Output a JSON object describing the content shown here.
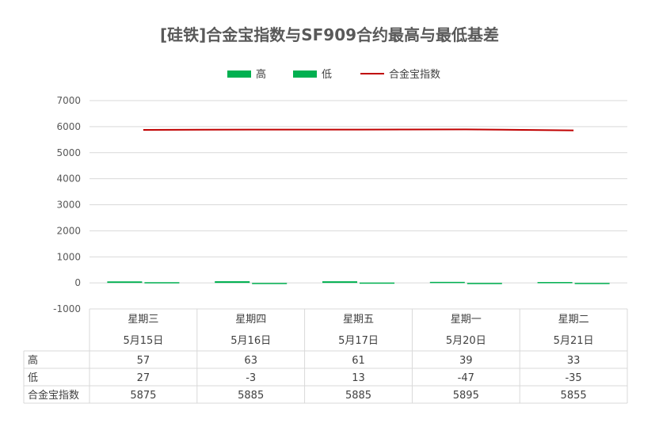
{
  "chart_data": {
    "type": "bar",
    "title": "[硅铁]合金宝指数与SF909合约最高与最低基差",
    "categories": [
      {
        "weekday": "星期三",
        "date": "5月15日"
      },
      {
        "weekday": "星期四",
        "date": "5月16日"
      },
      {
        "weekday": "星期五",
        "date": "5月17日"
      },
      {
        "weekday": "星期一",
        "date": "5月20日"
      },
      {
        "weekday": "星期二",
        "date": "5月21日"
      }
    ],
    "series": [
      {
        "name": "高",
        "kind": "bar",
        "color": "#00b050",
        "values": [
          57,
          63,
          61,
          39,
          33
        ]
      },
      {
        "name": "低",
        "kind": "bar",
        "color": "#00b050",
        "values": [
          27,
          -3,
          13,
          -47,
          -35
        ]
      },
      {
        "name": "合金宝指数",
        "kind": "line",
        "color": "#c00000",
        "values": [
          5875,
          5885,
          5885,
          5895,
          5855
        ]
      }
    ],
    "ylim": [
      -1000,
      7000
    ],
    "yticks": [
      7000,
      6000,
      5000,
      4000,
      3000,
      2000,
      1000,
      0,
      -1000
    ],
    "grid": true,
    "legend": "top",
    "table": {
      "rows": [
        {
          "label": "高",
          "values": [
            "57",
            "63",
            "61",
            "39",
            "33"
          ]
        },
        {
          "label": "低",
          "values": [
            "27",
            "-3",
            "13",
            "-47",
            "-35"
          ]
        },
        {
          "label": "合金宝指数",
          "values": [
            "5875",
            "5885",
            "5885",
            "5895",
            "5855"
          ]
        }
      ]
    }
  }
}
